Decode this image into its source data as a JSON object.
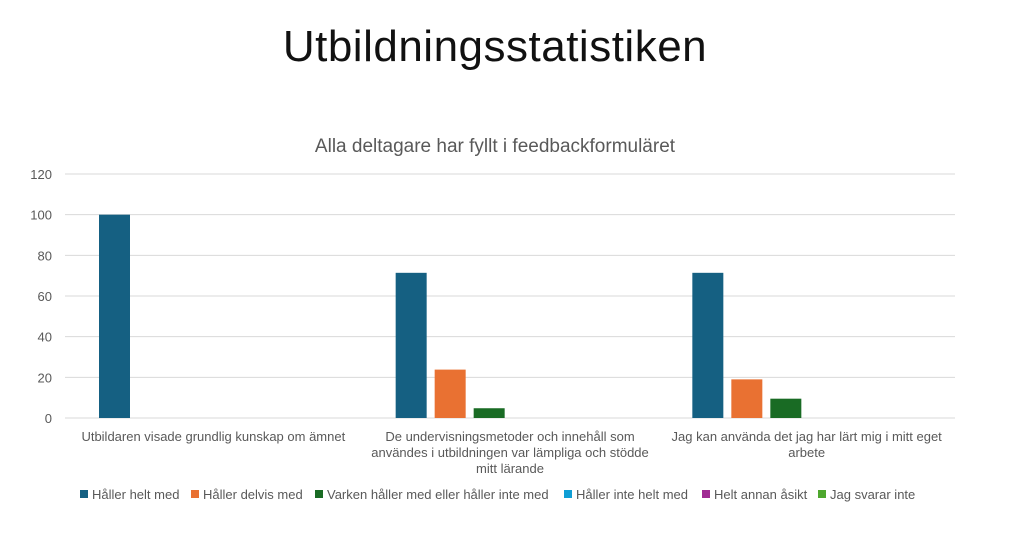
{
  "slide": {
    "title": "Utbildningsstatistiken"
  },
  "colors": {
    "gridline": "#d9d9d9",
    "axis_text": "#595959"
  },
  "chart_data": {
    "type": "bar",
    "title": "Alla deltagare har fyllt i feedbackformuläret",
    "xlabel": "",
    "ylabel": "",
    "ylim": [
      0,
      120
    ],
    "yticks": [
      0,
      20,
      40,
      60,
      80,
      100,
      120
    ],
    "grid": true,
    "legend_position": "bottom",
    "categories": [
      [
        "Utbildaren visade grundlig kunskap om ämnet"
      ],
      [
        "De undervisningsmetoder och innehåll som",
        "användes i utbildningen var lämpliga och stödde",
        "mitt lärande"
      ],
      [
        "Jag kan använda det jag har lärt mig i mitt eget",
        "arbete"
      ]
    ],
    "series": [
      {
        "name": "Håller helt med",
        "color": "#156082",
        "values": [
          100,
          71.4,
          71.4
        ]
      },
      {
        "name": "Håller delvis med",
        "color": "#e97132",
        "values": [
          0,
          23.8,
          19
        ]
      },
      {
        "name": "Varken håller med eller håller inte med",
        "color": "#196b24",
        "values": [
          0,
          4.8,
          9.5
        ]
      },
      {
        "name": "Håller inte helt med",
        "color": "#0f9ed5",
        "values": [
          0,
          0,
          0
        ]
      },
      {
        "name": "Helt annan åsikt",
        "color": "#a02b93",
        "values": [
          0,
          0,
          0
        ]
      },
      {
        "name": "Jag svarar inte",
        "color": "#4ea72e",
        "values": [
          0,
          0,
          0
        ]
      }
    ]
  }
}
